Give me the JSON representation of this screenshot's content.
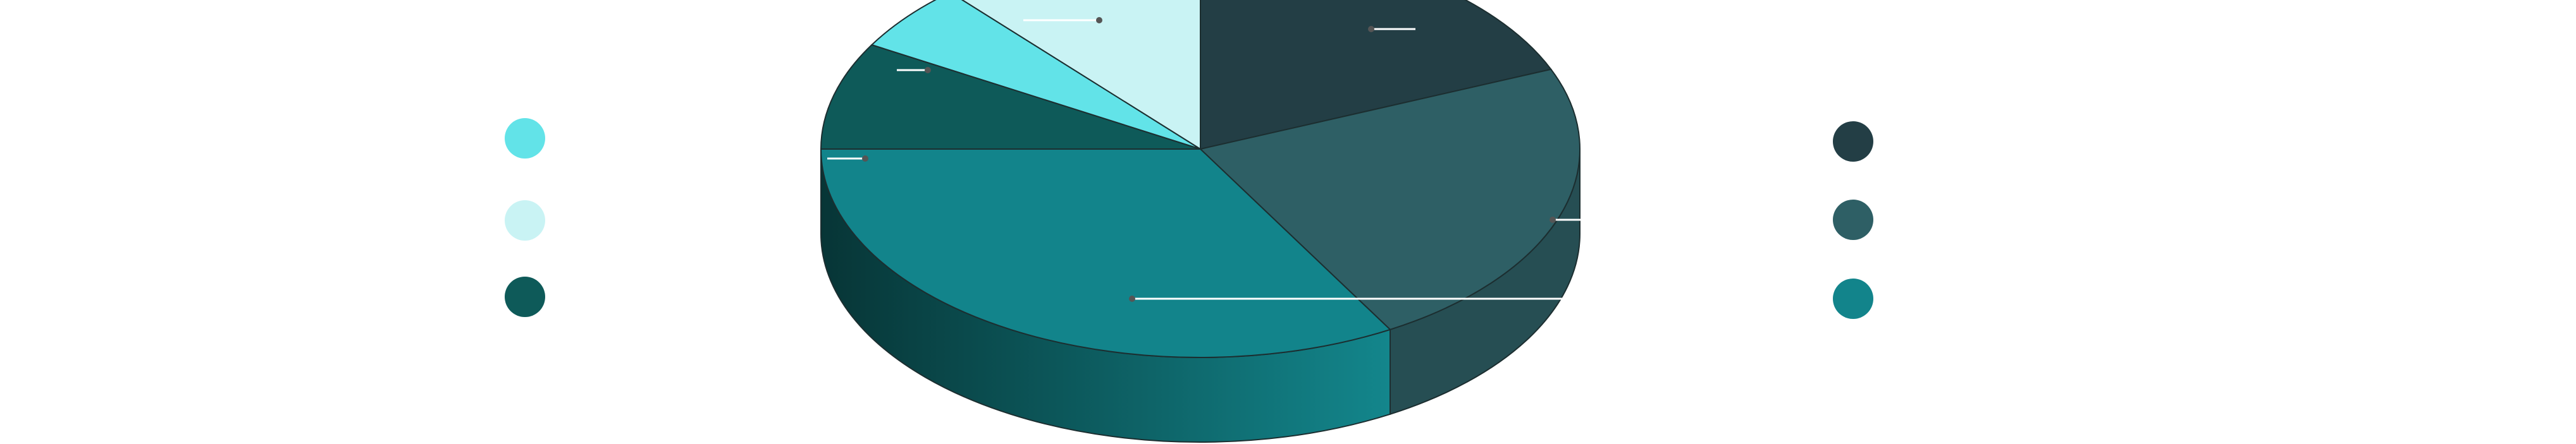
{
  "chart_data": {
    "type": "pie",
    "style": "3d-donut-less-pie",
    "title": "",
    "legend_placement": "left-and-right",
    "slices": [
      {
        "value": 18,
        "color": "#233e45"
      },
      {
        "value": 22,
        "color": "#2e5f65"
      },
      {
        "value": 32,
        "color": "#12848b"
      },
      {
        "value": 8,
        "color": "#0e5a59"
      },
      {
        "value": 5,
        "color": "#62e3e8"
      },
      {
        "value": 11,
        "color": "#c9f3f4"
      }
    ],
    "legend_left": [
      {
        "color": "#62e3e8"
      },
      {
        "color": "#c9f3f4"
      },
      {
        "color": "#0e5a59"
      }
    ],
    "legend_right": [
      {
        "color": "#233e45"
      },
      {
        "color": "#2e5f65"
      },
      {
        "color": "#12848b"
      }
    ]
  }
}
